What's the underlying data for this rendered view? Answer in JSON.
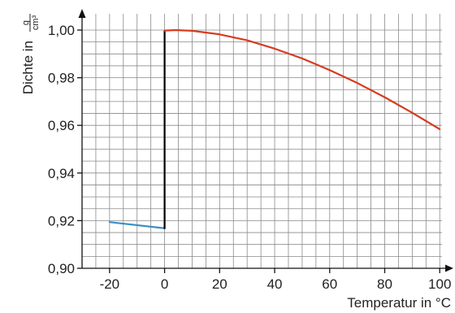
{
  "chart_data": {
    "type": "line",
    "xlabel": "Temperatur in °C",
    "ylabel": {
      "text": "Dichte in",
      "unit_numerator": "g",
      "unit_denominator": "cm³"
    },
    "xlim": [
      -30,
      102
    ],
    "ylim": [
      0.9,
      1.0
    ],
    "x_ticks": [
      {
        "value": -20,
        "label": "-20"
      },
      {
        "value": 0,
        "label": "0"
      },
      {
        "value": 20,
        "label": "20"
      },
      {
        "value": 40,
        "label": "40"
      },
      {
        "value": 60,
        "label": "60"
      },
      {
        "value": 80,
        "label": "80"
      },
      {
        "value": 100,
        "label": "100"
      }
    ],
    "y_ticks": [
      {
        "value": 0.9,
        "label": "0,90"
      },
      {
        "value": 0.92,
        "label": "0,92"
      },
      {
        "value": 0.94,
        "label": "0,94"
      },
      {
        "value": 0.96,
        "label": "0,96"
      },
      {
        "value": 0.98,
        "label": "0,98"
      },
      {
        "value": 1.0,
        "label": "1,00"
      }
    ],
    "grid": true,
    "grid_minor_x_step": 5,
    "grid_minor_y_step": 0.005,
    "series": [
      {
        "color": "#3a8fc4",
        "points": [
          [
            -20,
            0.9194
          ],
          [
            0,
            0.9168
          ]
        ]
      },
      {
        "color": "#000000",
        "points": [
          [
            0,
            0.9168
          ],
          [
            0,
            0.9998
          ]
        ]
      },
      {
        "color": "#d63b1f",
        "points": [
          [
            0,
            0.9998
          ],
          [
            4,
            1.0
          ],
          [
            10,
            0.9997
          ],
          [
            20,
            0.9982
          ],
          [
            30,
            0.9957
          ],
          [
            40,
            0.9922
          ],
          [
            50,
            0.9881
          ],
          [
            60,
            0.9832
          ],
          [
            70,
            0.9778
          ],
          [
            80,
            0.9718
          ],
          [
            90,
            0.9653
          ],
          [
            100,
            0.9584
          ]
        ]
      }
    ]
  }
}
